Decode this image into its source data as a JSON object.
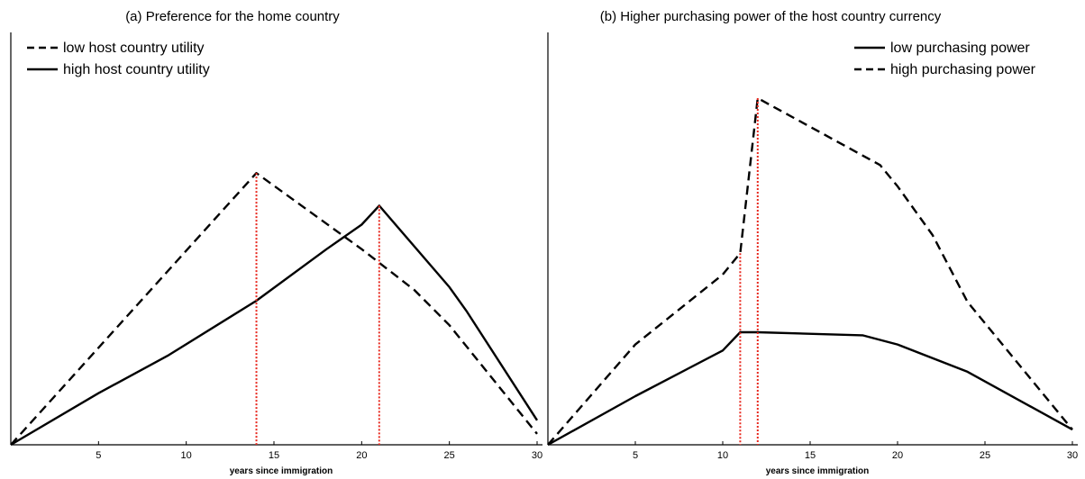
{
  "chart_data": [
    {
      "type": "line",
      "title": "(a) Preference for the home country",
      "xlabel": "years since immigration",
      "ylabel": "",
      "xlim": [
        0,
        30
      ],
      "xticks": [
        5,
        10,
        15,
        20,
        25,
        30
      ],
      "legend_position": "top-left",
      "series": [
        {
          "name": "low host country utility",
          "style": "dashed",
          "x": [
            0,
            14,
            20,
            23,
            25,
            30
          ],
          "y": [
            0,
            100,
            72,
            57,
            44,
            4
          ]
        },
        {
          "name": "high host country utility",
          "style": "solid",
          "x": [
            0,
            5,
            9,
            14,
            18,
            20,
            21,
            25,
            26,
            30
          ],
          "y": [
            0,
            19,
            33,
            53,
            72,
            81,
            88,
            58,
            49,
            9
          ]
        }
      ],
      "vlines": [
        {
          "x": 14,
          "color": "#e8281e",
          "style": "dotted"
        },
        {
          "x": 21,
          "color": "#e8281e",
          "style": "dotted"
        }
      ]
    },
    {
      "type": "line",
      "title": "(b) Higher purchasing power of the host country currency",
      "xlabel": "years since immigration",
      "ylabel": "",
      "xlim": [
        0,
        30
      ],
      "xticks": [
        5,
        10,
        15,
        20,
        25,
        30
      ],
      "legend_position": "top-right",
      "series": [
        {
          "name": "low purchasing power",
          "style": "solid",
          "x": [
            0,
            5,
            10,
            11,
            12,
            18,
            20,
            24,
            30
          ],
          "y": [
            0,
            16,
            31,
            37,
            37,
            36,
            33,
            24,
            5
          ]
        },
        {
          "name": "high purchasing power",
          "style": "dashed",
          "x": [
            0,
            5,
            10,
            11,
            12,
            19,
            20,
            22,
            24,
            30
          ],
          "y": [
            0,
            33,
            56,
            63,
            114,
            92,
            85,
            69,
            47,
            5
          ]
        }
      ],
      "vlines": [
        {
          "x": 11,
          "color": "#e8281e",
          "style": "dotted"
        },
        {
          "x": 12,
          "color": "#e8281e",
          "style": "dotted"
        }
      ]
    }
  ]
}
